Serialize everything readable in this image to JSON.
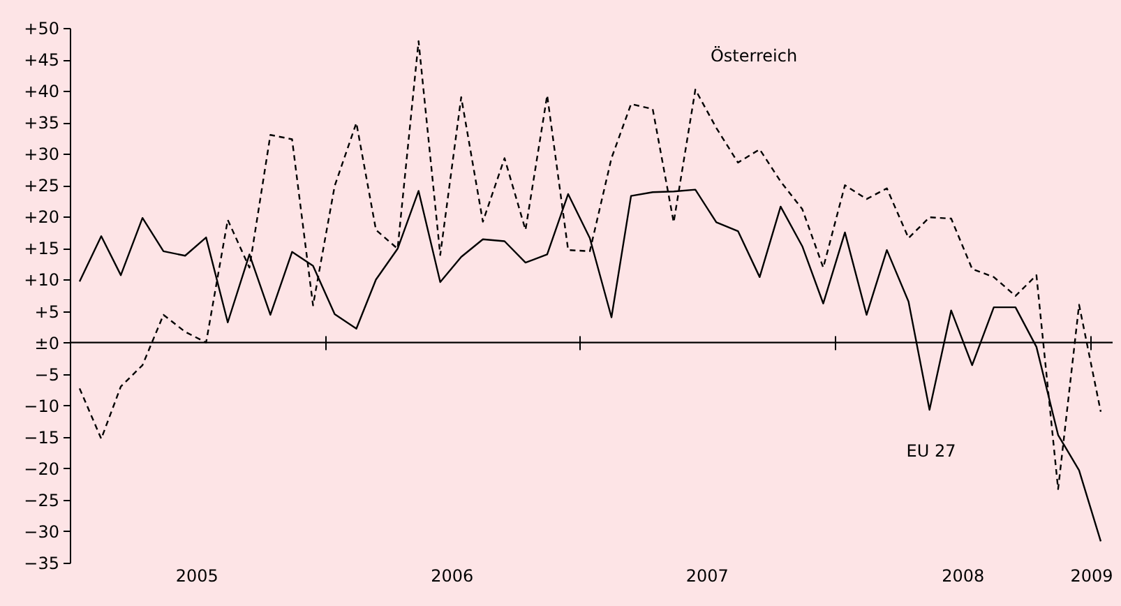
{
  "chart_data": {
    "type": "line",
    "x": [
      "2005-01-15",
      "2005-02-15",
      "2005-03-15",
      "2005-04-15",
      "2005-05-15",
      "2005-06-15",
      "2005-07-15",
      "2005-08-15",
      "2005-09-15",
      "2005-10-15",
      "2005-11-15",
      "2005-12-15",
      "2006-01-15",
      "2006-02-15",
      "2006-03-15",
      "2006-04-15",
      "2006-05-15",
      "2006-06-15",
      "2006-07-15",
      "2006-08-15",
      "2006-09-15",
      "2006-10-15",
      "2006-11-15",
      "2006-12-15",
      "2007-01-15",
      "2007-02-15",
      "2007-03-15",
      "2007-04-15",
      "2007-05-15",
      "2007-06-15",
      "2007-07-15",
      "2007-08-15",
      "2007-09-15",
      "2007-10-15",
      "2007-11-15",
      "2007-12-15",
      "2008-01-15",
      "2008-02-15",
      "2008-03-15",
      "2008-04-15",
      "2008-05-15",
      "2008-06-15",
      "2008-07-15",
      "2008-08-15",
      "2008-09-15",
      "2008-10-15",
      "2008-11-15",
      "2008-12-15",
      "2009-01-15"
    ],
    "series": [
      {
        "name": "EU 27",
        "color": "#000000",
        "line_style": "solid",
        "values": [
          9.7,
          16.9,
          10.7,
          19.8,
          14.5,
          13.8,
          16.7,
          3.2,
          14,
          4.4,
          14.4,
          12.2,
          4.5,
          2.2,
          10,
          14.9,
          24.1,
          9.6,
          13.6,
          16.4,
          16.1,
          12.7,
          14,
          23.6,
          16.6,
          4,
          23.3,
          23.9,
          24,
          24.3,
          19.1,
          17.7,
          10.4,
          21.6,
          15.3,
          6.2,
          17.5,
          4.4,
          14.7,
          6.5,
          -10.7,
          5.1,
          -3.6,
          5.6,
          5.6,
          -0.7,
          -14.7,
          -20.3,
          -31.6
        ]
      },
      {
        "name": "Österreich",
        "color": "#000000",
        "line_style": "dashed",
        "values": [
          -7.3,
          -15.3,
          -7,
          -3.6,
          4.4,
          1.7,
          0,
          19.5,
          11.9,
          33,
          32.3,
          5.9,
          24.9,
          34.9,
          17.9,
          14.9,
          47.9,
          13.9,
          39,
          19.2,
          29.3,
          17.9,
          39.3,
          14.7,
          14.5,
          29.3,
          37.9,
          37.1,
          19.1,
          40.2,
          34.1,
          28.6,
          30.7,
          25.6,
          21.2,
          11.9,
          25,
          22.8,
          24.5,
          16.6,
          19.9,
          19.7,
          11.7,
          10.4,
          7.4,
          10.7,
          -23.3,
          6,
          -11
        ]
      }
    ],
    "xlim": [
      "2005-01",
      "2009-02"
    ],
    "xticks": [
      {
        "value": "2005-01",
        "label": null
      },
      {
        "value": "2006-01",
        "label": null
      },
      {
        "value": "2007-01",
        "label": null
      },
      {
        "value": "2008-01",
        "label": null
      },
      {
        "value": "2009-01",
        "label": null
      },
      {
        "value": "2005-07",
        "label": "2005"
      },
      {
        "value": "2006-07",
        "label": "2006"
      },
      {
        "value": "2007-07",
        "label": "2007"
      },
      {
        "value": "2008-07",
        "label": "2008"
      },
      {
        "value": "2009-01",
        "label": "2009"
      }
    ],
    "ylim": [
      -35,
      50
    ],
    "yticks": [
      {
        "value": 50,
        "label": "+50"
      },
      {
        "value": 45,
        "label": "+45"
      },
      {
        "value": 40,
        "label": "+40"
      },
      {
        "value": 35,
        "label": "+35"
      },
      {
        "value": 30,
        "label": "+30"
      },
      {
        "value": 25,
        "label": "+25"
      },
      {
        "value": 20,
        "label": "+20"
      },
      {
        "value": 15,
        "label": "+15"
      },
      {
        "value": 10,
        "label": "+10"
      },
      {
        "value": 5,
        "label": "+5"
      },
      {
        "value": 0,
        "label": "±0"
      },
      {
        "value": -5,
        "label": "−5"
      },
      {
        "value": -10,
        "label": "−10"
      },
      {
        "value": -15,
        "label": "−15"
      },
      {
        "value": -20,
        "label": "−20"
      },
      {
        "value": -25,
        "label": "−25"
      },
      {
        "value": -30,
        "label": "−30"
      },
      {
        "value": -35,
        "label": "−35"
      }
    ],
    "ref_lines": [
      {
        "axis": "y",
        "value": 0
      }
    ],
    "grid": false,
    "legend": false,
    "marker": "none"
  }
}
